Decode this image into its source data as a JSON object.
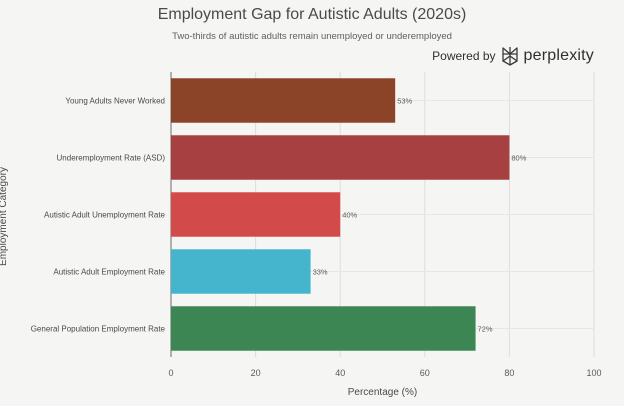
{
  "powered": {
    "label": "Powered by",
    "brand": "perplexity",
    "logo_icon": "perplexity-logo-icon"
  },
  "chart_data": {
    "type": "bar",
    "orientation": "horizontal",
    "title": "Employment Gap for Autistic Adults (2020s)",
    "subtitle": "Two-thirds of autistic adults remain unemployed or underemployed",
    "xlabel": "Percentage (%)",
    "ylabel": "Employment Category",
    "xlim": [
      0,
      100
    ],
    "xticks": [
      0,
      20,
      40,
      60,
      80,
      100
    ],
    "grid": true,
    "categories": [
      "Young Adults Never Worked",
      "Underemployment Rate (ASD)",
      "Autistic Adult Unemployment Rate",
      "Autistic Adult Employment Rate",
      "General Population Employment Rate"
    ],
    "values": [
      53,
      80,
      40,
      33,
      72
    ],
    "data_labels": [
      "53%",
      "80%",
      "40%",
      "33%",
      "72%"
    ],
    "colors": [
      "#8b4428",
      "#a74040",
      "#d24a4a",
      "#45b5cd",
      "#3b8652"
    ]
  }
}
